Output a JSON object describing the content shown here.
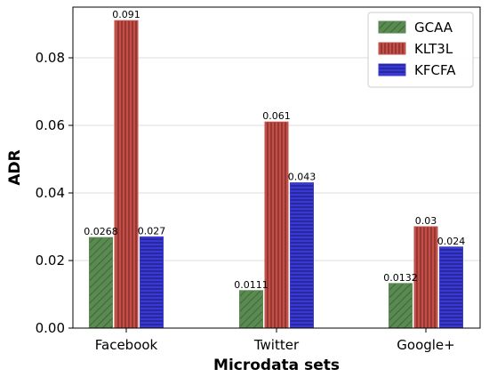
{
  "chart_data": {
    "type": "bar",
    "xlabel": "Microdata sets",
    "ylabel": "ADR",
    "categories": [
      "Facebook",
      "Twitter",
      "Google+"
    ],
    "series": [
      {
        "name": "GCAA",
        "values": [
          0.0268,
          0.0111,
          0.0132
        ],
        "labels": [
          "0.0268",
          "0.0111",
          "0.0132"
        ],
        "color": "#5a8a52",
        "hatch": "diagonal"
      },
      {
        "name": "KLT3L",
        "values": [
          0.091,
          0.061,
          0.03
        ],
        "labels": [
          "0.091",
          "0.061",
          "0.03"
        ],
        "color": "#c0504a",
        "hatch": "vertical"
      },
      {
        "name": "KFCFA",
        "values": [
          0.027,
          0.043,
          0.024
        ],
        "labels": [
          "0.027",
          "0.043",
          "0.024"
        ],
        "color": "#3a3ad0",
        "hatch": "horizontal"
      }
    ],
    "yticks": [
      "0.00",
      "0.02",
      "0.04",
      "0.06",
      "0.08"
    ],
    "ylim": [
      0,
      0.095
    ],
    "grid": true,
    "legend": "top-right"
  }
}
